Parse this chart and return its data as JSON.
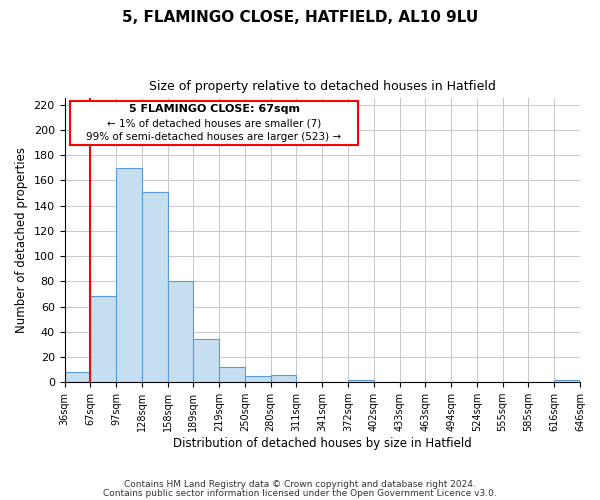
{
  "title": "5, FLAMINGO CLOSE, HATFIELD, AL10 9LU",
  "subtitle": "Size of property relative to detached houses in Hatfield",
  "xlabel": "Distribution of detached houses by size in Hatfield",
  "ylabel": "Number of detached properties",
  "footer_line1": "Contains HM Land Registry data © Crown copyright and database right 2024.",
  "footer_line2": "Contains public sector information licensed under the Open Government Licence v3.0.",
  "annotation_line1": "5 FLAMINGO CLOSE: 67sqm",
  "annotation_line2": "← 1% of detached houses are smaller (7)",
  "annotation_line3": "99% of semi-detached houses are larger (523) →",
  "bin_labels": [
    "36sqm",
    "67sqm",
    "97sqm",
    "128sqm",
    "158sqm",
    "189sqm",
    "219sqm",
    "250sqm",
    "280sqm",
    "311sqm",
    "341sqm",
    "372sqm",
    "402sqm",
    "433sqm",
    "463sqm",
    "494sqm",
    "524sqm",
    "555sqm",
    "585sqm",
    "616sqm",
    "646sqm"
  ],
  "bar_heights": [
    8,
    68,
    170,
    151,
    80,
    34,
    12,
    5,
    6,
    0,
    0,
    2,
    0,
    0,
    0,
    0,
    0,
    0,
    0,
    2
  ],
  "bar_color": "#c5dff0",
  "bar_edge_color": "#5b9bd5",
  "highlight_bar_index": 1,
  "highlight_color": "#ff0000",
  "ylim": [
    0,
    225
  ],
  "yticks": [
    0,
    20,
    40,
    60,
    80,
    100,
    120,
    140,
    160,
    180,
    200,
    220
  ],
  "background_color": "#ffffff",
  "grid_color": "#c8c8c8"
}
